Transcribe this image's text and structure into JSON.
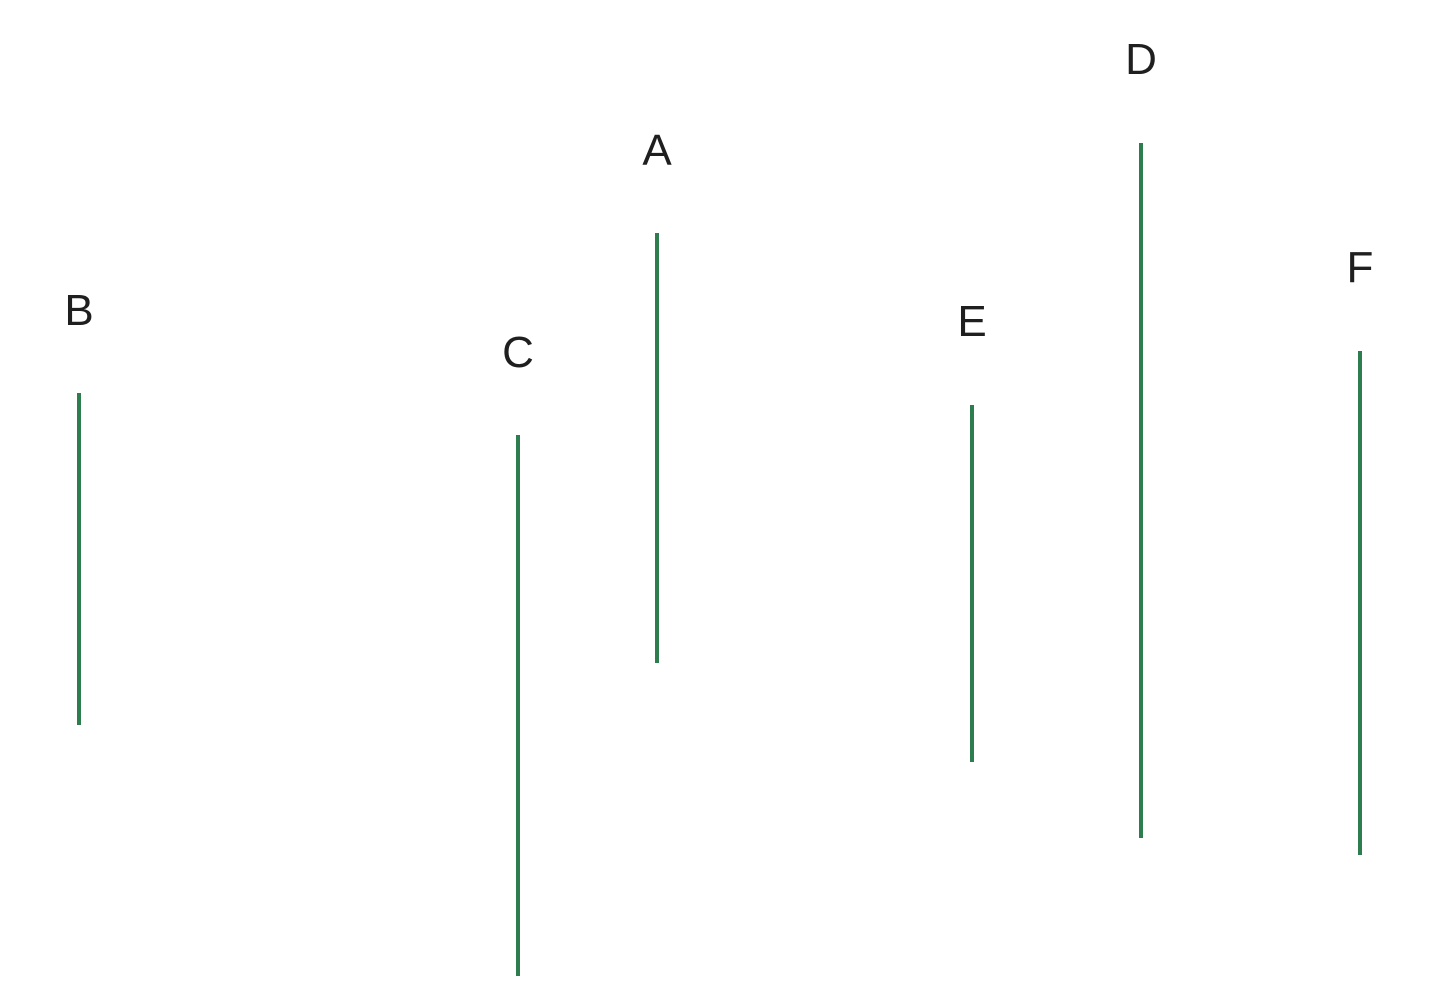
{
  "line_color": "#2e7d4f",
  "segments": [
    {
      "label": "A"
    },
    {
      "label": "B"
    },
    {
      "label": "C"
    },
    {
      "label": "D"
    },
    {
      "label": "E"
    },
    {
      "label": "F"
    }
  ]
}
